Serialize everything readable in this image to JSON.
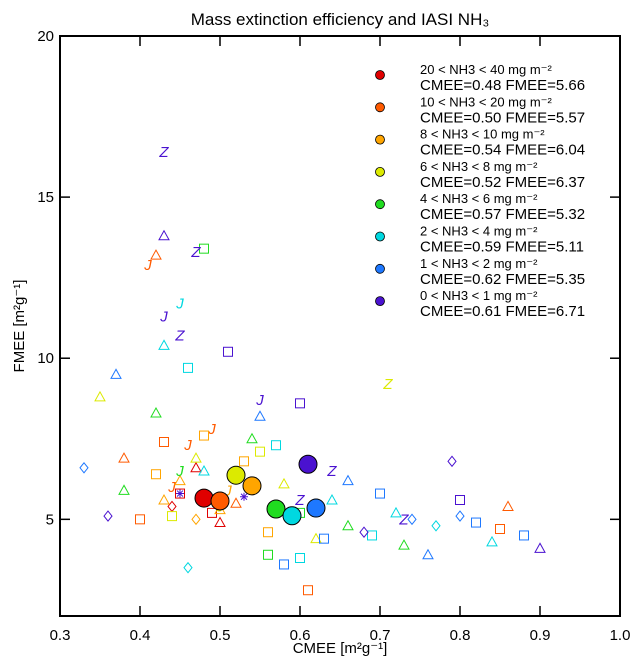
{
  "chart_data": {
    "type": "scatter",
    "title": "Mass extinction efficiency and IASI NH₃",
    "x_label": "CMEE [m²g⁻¹]",
    "y_label": "FMEE [m²g⁻¹]",
    "xlim": [
      0.3,
      1.0
    ],
    "ylim": [
      2,
      20
    ],
    "xticks": [
      0.3,
      0.4,
      0.5,
      0.6,
      0.7,
      0.8,
      0.9,
      {
        "value": 1.0,
        "label": "1.0"
      }
    ],
    "yticks": [
      5,
      10,
      15,
      20
    ],
    "series": [
      {
        "name": "20 < NH3 < 40 mg m⁻²",
        "label": "CMEE=0.48 FMEE=5.66",
        "x": 0.48,
        "y": 5.66,
        "color": "#e00000",
        "points_x": [
          0.45,
          0.47,
          0.49,
          0.44,
          0.5
        ],
        "points_y": [
          5.8,
          6.6,
          5.2,
          5.4,
          4.9
        ],
        "points_marker": [
          "square",
          "triangle",
          "square",
          "diamond",
          "triangle"
        ]
      },
      {
        "name": "10 < NH3 < 20 mg m⁻²",
        "label": "CMEE=0.50 FMEE=5.57",
        "x": 0.5,
        "y": 5.57,
        "color": "#ff5a00",
        "points_x": [
          0.41,
          0.42,
          0.44,
          0.46,
          0.49,
          0.43,
          0.38,
          0.4,
          0.52,
          0.86,
          0.85,
          0.61
        ],
        "points_y": [
          12.9,
          13.2,
          6.0,
          7.3,
          7.8,
          7.4,
          6.9,
          5.0,
          5.5,
          5.4,
          4.7,
          2.8
        ],
        "points_marker": [
          "J",
          "triangle",
          "J",
          "J",
          "J",
          "square",
          "triangle",
          "square",
          "triangle",
          "triangle",
          "square",
          "square"
        ]
      },
      {
        "name": "8 < NH3 < 10 mg m⁻²",
        "label": "CMEE=0.54 FMEE=6.04",
        "x": 0.54,
        "y": 6.04,
        "color": "#ffa500",
        "points_x": [
          0.42,
          0.45,
          0.48,
          0.51,
          0.47,
          0.53,
          0.43,
          0.56,
          0.5
        ],
        "points_y": [
          6.4,
          6.2,
          7.6,
          5.9,
          5.0,
          6.8,
          5.6,
          4.6,
          5.3
        ],
        "points_marker": [
          "square",
          "triangle",
          "square",
          "J",
          "diamond",
          "square",
          "triangle",
          "square",
          "triangle"
        ]
      },
      {
        "name": "6 < NH3 < 8 mg m⁻²",
        "label": "CMEE=0.52 FMEE=6.37",
        "x": 0.52,
        "y": 6.37,
        "color": "#dcea00",
        "points_x": [
          0.35,
          0.71,
          0.47,
          0.55,
          0.5,
          0.58,
          0.44,
          0.62
        ],
        "points_y": [
          8.8,
          9.2,
          6.9,
          7.1,
          5.4,
          6.1,
          5.1,
          4.4
        ],
        "points_marker": [
          "triangle",
          "Z",
          "triangle",
          "square",
          "J",
          "triangle",
          "square",
          "triangle"
        ]
      },
      {
        "name": "4 < NH3 < 6 mg m⁻²",
        "label": "CMEE=0.57 FMEE=5.32",
        "x": 0.57,
        "y": 5.32,
        "color": "#20dc20",
        "points_x": [
          0.42,
          0.48,
          0.54,
          0.38,
          0.6,
          0.66,
          0.73,
          0.56,
          0.45
        ],
        "points_y": [
          8.3,
          13.4,
          7.5,
          5.9,
          5.2,
          4.8,
          4.2,
          3.9,
          6.5
        ],
        "points_marker": [
          "triangle",
          "square",
          "triangle",
          "triangle",
          "square",
          "triangle",
          "triangle",
          "square",
          "J"
        ]
      },
      {
        "name": "2 < NH3 < 4 mg m⁻²",
        "label": "CMEE=0.59 FMEE=5.11",
        "x": 0.59,
        "y": 5.11,
        "color": "#00d8e0",
        "points_x": [
          0.45,
          0.46,
          0.43,
          0.46,
          0.48,
          0.57,
          0.64,
          0.69,
          0.77,
          0.84,
          0.52,
          0.6,
          0.72
        ],
        "points_y": [
          11.7,
          9.7,
          10.4,
          3.5,
          6.5,
          7.3,
          5.6,
          4.5,
          4.8,
          4.3,
          6.3,
          3.8,
          5.2
        ],
        "points_marker": [
          "J",
          "square",
          "triangle",
          "diamond",
          "triangle",
          "square",
          "triangle",
          "square",
          "diamond",
          "triangle",
          "square",
          "square",
          "triangle"
        ]
      },
      {
        "name": "1 < NH3 < 2 mg m⁻²",
        "label": "CMEE=0.62 FMEE=5.35",
        "x": 0.62,
        "y": 5.35,
        "color": "#1e78ff",
        "points_x": [
          0.33,
          0.37,
          0.55,
          0.63,
          0.7,
          0.76,
          0.82,
          0.88,
          0.8,
          0.66,
          0.58,
          0.74
        ],
        "points_y": [
          6.6,
          9.5,
          8.2,
          4.4,
          5.8,
          3.9,
          4.9,
          4.5,
          5.1,
          6.2,
          3.6,
          5.0
        ],
        "points_marker": [
          "diamond",
          "triangle",
          "triangle",
          "square",
          "square",
          "triangle",
          "square",
          "square",
          "diamond",
          "triangle",
          "square",
          "diamond"
        ]
      },
      {
        "name": "0 < NH3 < 1 mg m⁻²",
        "label": "CMEE=0.61 FMEE=6.71",
        "x": 0.61,
        "y": 6.71,
        "color": "#4a12d0",
        "points_x": [
          0.43,
          0.47,
          0.43,
          0.45,
          0.43,
          0.45,
          0.51,
          0.55,
          0.53,
          0.6,
          0.64,
          0.6,
          0.73,
          0.8,
          0.9,
          0.68,
          0.36,
          0.79
        ],
        "points_y": [
          16.4,
          13.3,
          13.8,
          10.7,
          11.3,
          5.8,
          10.2,
          8.7,
          5.7,
          8.6,
          6.5,
          5.6,
          5.0,
          5.6,
          4.1,
          4.6,
          5.1,
          6.8
        ],
        "points_marker": [
          "Z",
          "Z",
          "triangle",
          "Z",
          "J",
          "asterisk",
          "square",
          "J",
          "asterisk",
          "square",
          "Z",
          "Z",
          "Z",
          "square",
          "triangle",
          "diamond",
          "diamond",
          "diamond"
        ]
      }
    ]
  }
}
